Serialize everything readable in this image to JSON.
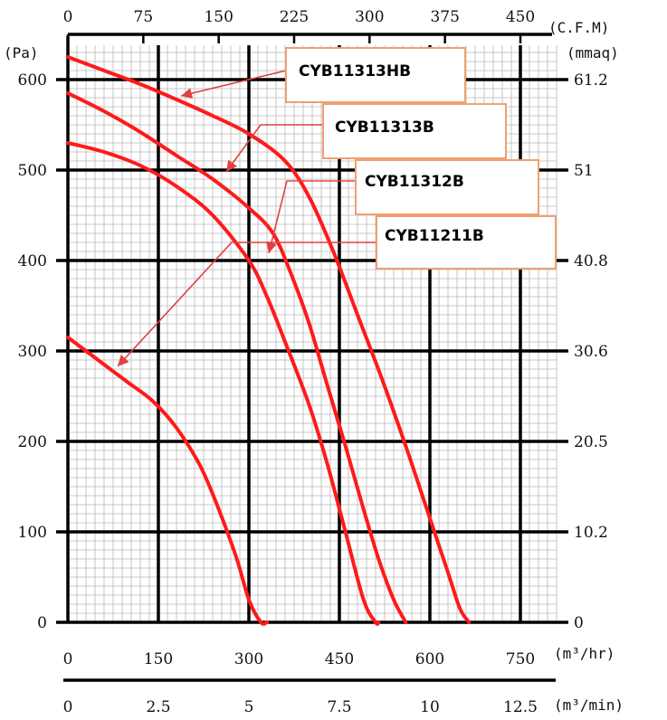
{
  "chart_data": {
    "type": "line",
    "title": "",
    "xlabel": "m³/hr",
    "ylabel": "Pa",
    "xlim": [
      0,
      810
    ],
    "ylim": [
      0,
      630
    ],
    "grid": true,
    "x_ticks": [
      "0",
      "150",
      "300",
      "450",
      "600",
      "750"
    ],
    "y_ticks": [
      "0",
      "100",
      "200",
      "300",
      "400",
      "500",
      "600"
    ],
    "top_axis": {
      "unit": "C.F.M",
      "ticks": [
        "0",
        "75",
        "150",
        "225",
        "300",
        "375",
        "450"
      ]
    },
    "right_axis": {
      "unit": "mmaq",
      "ticks": [
        "0",
        "10.2",
        "20.5",
        "30.6",
        "40.8",
        "51",
        "61.2"
      ]
    },
    "bottom_axis2": {
      "unit": "m³/min",
      "ticks": [
        "0",
        "2.5",
        "5",
        "7.5",
        "10",
        "12.5"
      ]
    },
    "units": {
      "pa": "(Pa)",
      "cfm": "(C.F.M)",
      "mmaq": "(mmaq)",
      "m3hr": "(m³/hr)",
      "m3min": "(m³/min)"
    },
    "series": [
      {
        "name": "CYB11313HB",
        "x": [
          0,
          60,
          120,
          180,
          240,
          300,
          360,
          400,
          440,
          480,
          520,
          560,
          600,
          630,
          650,
          665
        ],
        "y": [
          625,
          610,
          595,
          578,
          560,
          540,
          510,
          470,
          410,
          340,
          270,
          195,
          115,
          55,
          15,
          0
        ]
      },
      {
        "name": "CYB11313B",
        "x": [
          0,
          60,
          120,
          180,
          240,
          300,
          340,
          370,
          400,
          430,
          460,
          490,
          515,
          540,
          560
        ],
        "y": [
          585,
          565,
          542,
          516,
          490,
          458,
          430,
          385,
          330,
          262,
          195,
          125,
          70,
          25,
          0
        ]
      },
      {
        "name": "CYB11312B",
        "x": [
          0,
          60,
          120,
          180,
          240,
          300,
          330,
          360,
          400,
          430,
          460,
          490,
          510,
          515
        ],
        "y": [
          530,
          520,
          505,
          482,
          450,
          400,
          360,
          310,
          240,
          175,
          100,
          25,
          0,
          0
        ]
      },
      {
        "name": "CYB11211B",
        "x": [
          0,
          30,
          60,
          100,
          140,
          180,
          220,
          250,
          280,
          300,
          320,
          330
        ],
        "y": [
          315,
          300,
          285,
          265,
          245,
          215,
          172,
          125,
          70,
          25,
          0,
          0
        ]
      }
    ],
    "callouts": [
      {
        "label": "CYB11313HB",
        "series": "CYB11313HB"
      },
      {
        "label": "CYB11313B",
        "series": "CYB11313B"
      },
      {
        "label": "CYB11312B",
        "series": "CYB11312B"
      },
      {
        "label": "CYB11211B",
        "series": "CYB11211B"
      }
    ],
    "colors": {
      "curve": "#ff1a1a",
      "callout_border": "#f0a070",
      "callout_arrow": "#e04040",
      "major_grid": "#000000",
      "minor_grid": "#b8b8b8"
    }
  }
}
